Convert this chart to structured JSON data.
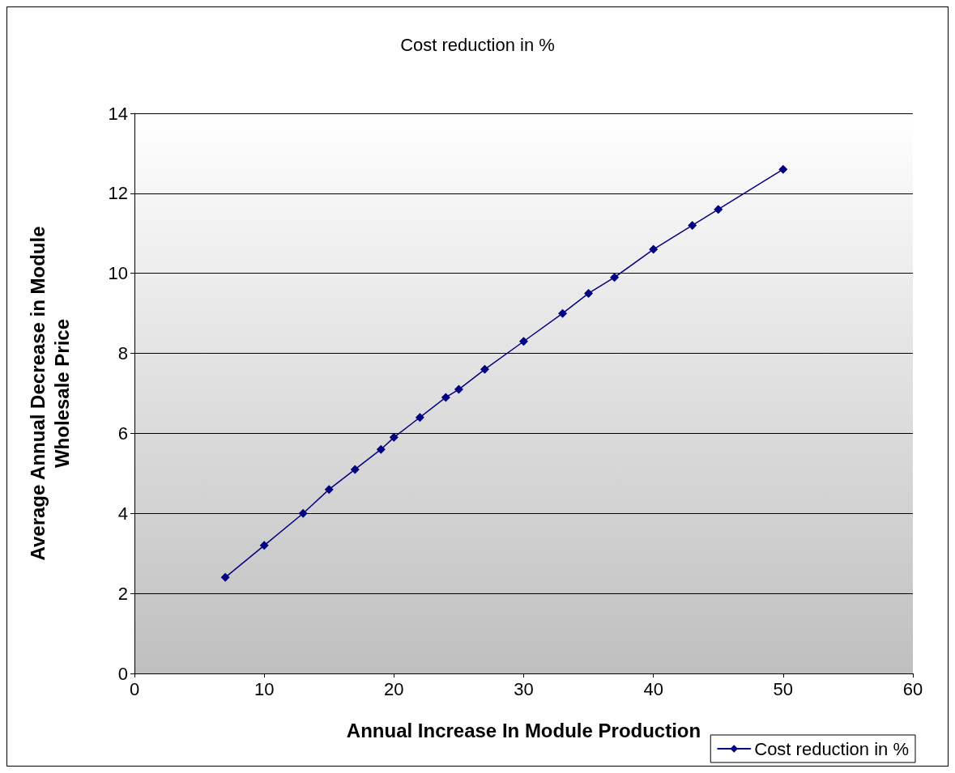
{
  "chart_data": {
    "type": "line",
    "title": "Cost reduction in %",
    "xlabel": "Annual Increase In Module Production",
    "ylabel": "Average Annual Decrease in Module\nWholesale Price",
    "x": [
      7,
      10,
      13,
      15,
      17,
      19,
      20,
      22,
      24,
      25,
      27,
      30,
      33,
      35,
      37,
      40,
      43,
      45,
      50
    ],
    "series": [
      {
        "name": "Cost reduction in %",
        "color": "#000080",
        "values": [
          2.4,
          3.2,
          4.0,
          4.6,
          5.1,
          5.6,
          5.9,
          6.4,
          6.9,
          7.1,
          7.6,
          8.3,
          9.0,
          9.5,
          9.9,
          10.6,
          11.2,
          11.6,
          12.6
        ]
      }
    ],
    "xlim": [
      0,
      60
    ],
    "xticks": [
      0,
      10,
      20,
      30,
      40,
      50,
      60
    ],
    "ylim": [
      0,
      14
    ],
    "yticks": [
      0,
      2,
      4,
      6,
      8,
      10,
      12,
      14
    ],
    "grid": "y",
    "legend": "bottom right",
    "marker": "diamond",
    "line_style": "solid"
  }
}
